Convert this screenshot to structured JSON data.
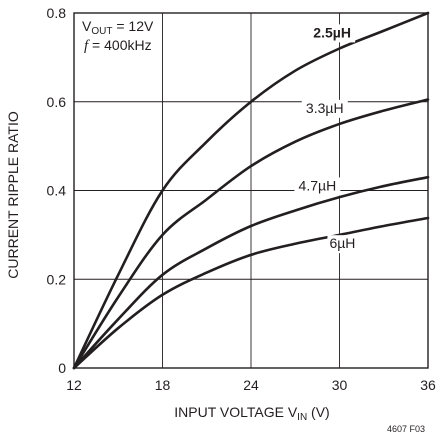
{
  "chart_data": {
    "type": "line",
    "xlabel_main": "INPUT VOLTAGE V",
    "xlabel_sub": "IN",
    "xlabel_unit": " (V)",
    "ylabel": "CURRENT RIPPLE RATIO",
    "xlim": [
      12,
      36
    ],
    "ylim": [
      0,
      0.8
    ],
    "x_ticks": [
      "12",
      "18",
      "24",
      "30",
      "36"
    ],
    "y_ticks": [
      "0",
      "0.2",
      "0.4",
      "0.6",
      "0.8"
    ],
    "grid": true,
    "annotations": {
      "vout_main": "V",
      "vout_sub": "OUT",
      "vout_value": " = 12V",
      "freq_symbol": "f",
      "freq_value": " = 400kHz"
    },
    "figure_id": "4607 F03",
    "x": [
      12,
      15,
      18,
      21,
      24,
      27,
      30,
      33,
      36
    ],
    "series": [
      {
        "name": "2.5µH",
        "values": [
          0,
          0.21,
          0.4,
          0.51,
          0.6,
          0.67,
          0.72,
          0.76,
          0.8
        ]
      },
      {
        "name": "3.3µH",
        "values": [
          0,
          0.16,
          0.3,
          0.38,
          0.455,
          0.51,
          0.55,
          0.58,
          0.605
        ]
      },
      {
        "name": "4.7µH",
        "values": [
          0,
          0.11,
          0.21,
          0.27,
          0.32,
          0.355,
          0.385,
          0.41,
          0.43
        ]
      },
      {
        "name": "6µH",
        "values": [
          0,
          0.09,
          0.165,
          0.215,
          0.255,
          0.28,
          0.3,
          0.32,
          0.338
        ]
      }
    ]
  }
}
